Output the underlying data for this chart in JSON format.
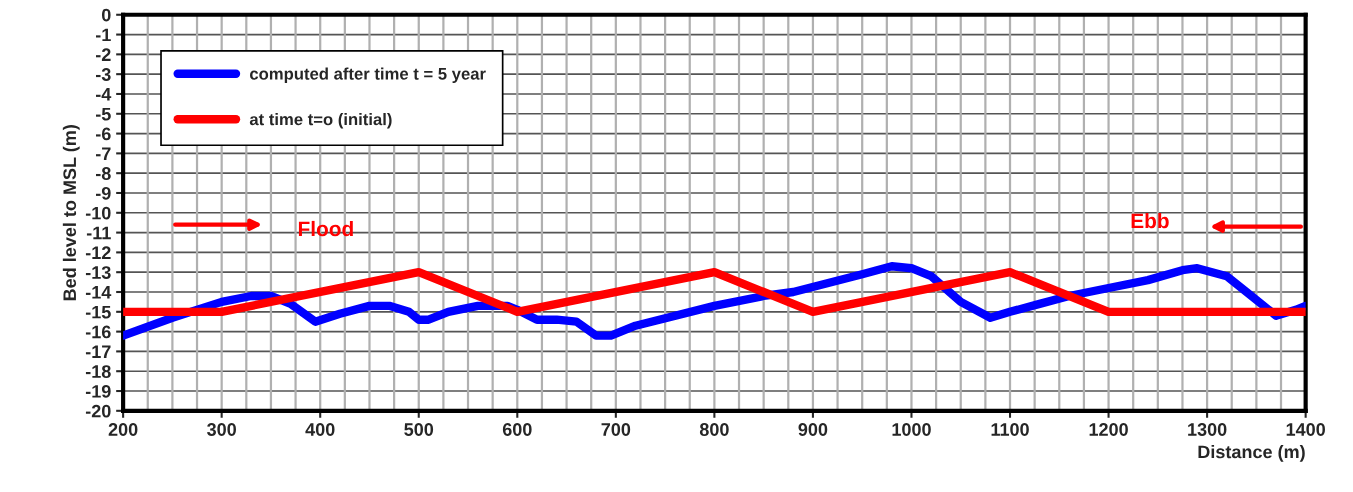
{
  "chart_data": {
    "type": "line",
    "xlabel": "Distance (m)",
    "ylabel": "Bed level to MSL (m)",
    "xlim": [
      200,
      1400
    ],
    "ylim": [
      -20,
      0
    ],
    "xticks": [
      200,
      300,
      400,
      500,
      600,
      700,
      800,
      900,
      1000,
      1100,
      1200,
      1300,
      1400
    ],
    "yticks": [
      0,
      -1,
      -2,
      -3,
      -4,
      -5,
      -6,
      -7,
      -8,
      -9,
      -10,
      -11,
      -12,
      -13,
      -14,
      -15,
      -16,
      -17,
      -18,
      -19,
      -20
    ],
    "grid": true,
    "legend": "top left",
    "marker": "none",
    "line_style": "solid",
    "annotations": [
      "Flood",
      "Ebb"
    ],
    "series": [
      {
        "name": "computed after time t = 5 year",
        "color": "#0000ff",
        "x": [
          200,
          250,
          300,
          330,
          350,
          370,
          395,
          420,
          450,
          470,
          490,
          500,
          510,
          530,
          560,
          590,
          600,
          620,
          640,
          660,
          680,
          695,
          720,
          800,
          850,
          880,
          950,
          980,
          1000,
          1020,
          1050,
          1080,
          1100,
          1130,
          1160,
          1190,
          1240,
          1275,
          1290,
          1320,
          1340,
          1370,
          1390,
          1400
        ],
        "values": [
          -16.2,
          -15.3,
          -14.5,
          -14.2,
          -14.2,
          -14.6,
          -15.5,
          -15.1,
          -14.7,
          -14.7,
          -15.0,
          -15.4,
          -15.4,
          -15.0,
          -14.7,
          -14.7,
          -14.9,
          -15.4,
          -15.4,
          -15.5,
          -16.2,
          -16.2,
          -15.7,
          -14.7,
          -14.2,
          -14.0,
          -13.1,
          -12.7,
          -12.8,
          -13.2,
          -14.5,
          -15.3,
          -15.0,
          -14.6,
          -14.2,
          -13.9,
          -13.4,
          -12.9,
          -12.8,
          -13.2,
          -14.0,
          -15.2,
          -14.9,
          -14.7
        ]
      },
      {
        "name": "at time t=o (initial)",
        "color": "#ff0000",
        "x": [
          200,
          300,
          500,
          600,
          800,
          900,
          1100,
          1200,
          1400
        ],
        "values": [
          -15,
          -15,
          -13,
          -15,
          -13,
          -15,
          -13,
          -15,
          -15
        ]
      }
    ]
  }
}
